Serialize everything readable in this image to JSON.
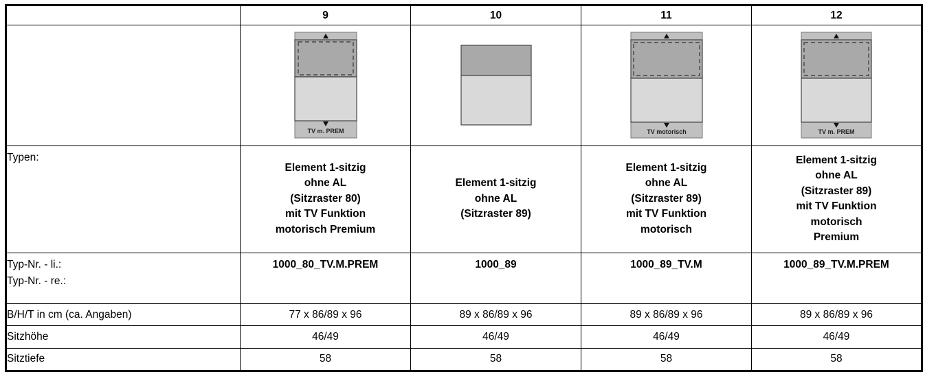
{
  "columns": [
    {
      "number": "9",
      "diagram": {
        "icon": "tv-lift-diagram",
        "has_lift": true,
        "caption": "TV m. PREM"
      },
      "type_lines": [
        "Element 1-sitzig",
        "ohne AL",
        "(Sitzraster 80)",
        "mit TV Funktion",
        "motorisch Premium"
      ],
      "type_nr": "1000_80_TV.M.PREM",
      "dimensions": "77 x 86/89 x 96",
      "seat_height": "46/49",
      "seat_depth": "58"
    },
    {
      "number": "10",
      "diagram": {
        "icon": "seat-element-diagram",
        "has_lift": false,
        "caption": ""
      },
      "type_lines": [
        "Element 1-sitzig",
        "ohne AL",
        "(Sitzraster 89)"
      ],
      "type_nr": "1000_89",
      "dimensions": "89 x 86/89 x 96",
      "seat_height": "46/49",
      "seat_depth": "58"
    },
    {
      "number": "11",
      "diagram": {
        "icon": "tv-lift-diagram",
        "has_lift": true,
        "caption": "TV motorisch"
      },
      "type_lines": [
        "Element 1-sitzig",
        "ohne AL",
        "(Sitzraster 89)",
        "mit TV Funktion",
        "motorisch"
      ],
      "type_nr": "1000_89_TV.M",
      "dimensions": "89 x 86/89 x 96",
      "seat_height": "46/49",
      "seat_depth": "58"
    },
    {
      "number": "12",
      "diagram": {
        "icon": "tv-lift-diagram",
        "has_lift": true,
        "caption": "TV m. PREM"
      },
      "type_lines": [
        "Element 1-sitzig",
        "ohne AL",
        "(Sitzraster 89)",
        "mit TV Funktion",
        "motorisch",
        "Premium"
      ],
      "type_nr": "1000_89_TV.M.PREM",
      "dimensions": "89 x 86/89 x 96",
      "seat_height": "46/49",
      "seat_depth": "58"
    }
  ],
  "labels": {
    "types": "Typen:",
    "type_nr_left": "Typ-Nr. - li.:",
    "type_nr_right": "Typ-Nr. - re.:",
    "dimensions": "B/H/T in cm (ca. Angaben)",
    "seat_height": "Sitzhöhe",
    "seat_depth": "Sitztiefe"
  },
  "colors": {
    "backrest": "#a9a9a9",
    "seat": "#d9d9d9",
    "lift_band": "#c0c0c0"
  }
}
